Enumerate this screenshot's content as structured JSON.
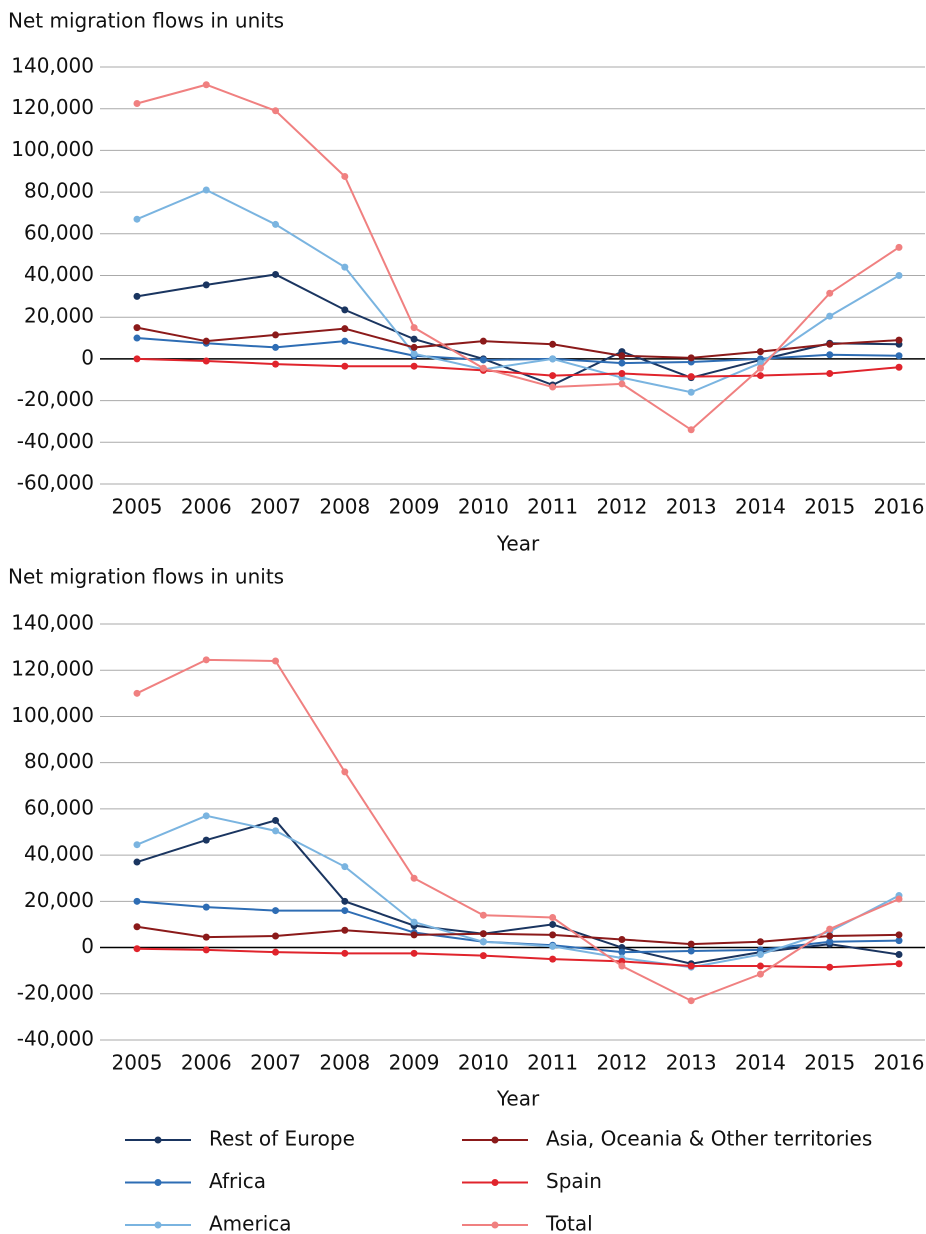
{
  "chart_data": [
    {
      "type": "line",
      "title": "Net migration flows in units",
      "x_label": "Year",
      "categories": [
        "2005",
        "2006",
        "2007",
        "2008",
        "2009",
        "2010",
        "2011",
        "2012",
        "2013",
        "2014",
        "2015",
        "2016"
      ],
      "ylim": [
        -60000,
        140000
      ],
      "yticks": [
        {
          "value": -60000,
          "label": "-60,000"
        },
        {
          "value": -40000,
          "label": "-40,000"
        },
        {
          "value": -20000,
          "label": "-20,000"
        },
        0,
        {
          "value": 20000,
          "label": "20,000"
        },
        {
          "value": 40000,
          "label": "40,000"
        },
        {
          "value": 60000,
          "label": "60,000"
        },
        {
          "value": 80000,
          "label": "80,000"
        },
        {
          "value": 100000,
          "label": "100,000"
        },
        {
          "value": 120000,
          "label": "120,000"
        },
        {
          "value": 140000,
          "label": "140,000"
        }
      ],
      "grid": true,
      "series": [
        {
          "color": "#1a3560",
          "values": [
            30000,
            35500,
            40500,
            23500,
            9500,
            0,
            -12500,
            3500,
            -9000,
            -500,
            7500,
            7000
          ]
        },
        {
          "color": "#2e6db4",
          "values": [
            10000,
            7500,
            5500,
            8500,
            1500,
            -500,
            0,
            -2000,
            -1500,
            0,
            2000,
            1500
          ]
        },
        {
          "color": "#7ab4e0",
          "values": [
            67000,
            81000,
            64500,
            44000,
            2500,
            -5000,
            0,
            -9000,
            -16000,
            -2000,
            20500,
            40000
          ]
        },
        {
          "color": "#8b1a1a",
          "values": [
            15000,
            8500,
            11500,
            14500,
            5500,
            8500,
            7000,
            1500,
            500,
            3500,
            7000,
            9000
          ]
        },
        {
          "color": "#e0242c",
          "values": [
            0,
            -1000,
            -2500,
            -3500,
            -3500,
            -5500,
            -8000,
            -7000,
            -8500,
            -8000,
            -7000,
            -4000
          ]
        },
        {
          "color": "#f08080",
          "values": [
            122500,
            131500,
            119000,
            87500,
            15000,
            -4500,
            -13500,
            -12000,
            -34000,
            -4500,
            31500,
            53500
          ]
        }
      ]
    },
    {
      "type": "line",
      "title": "Net migration flows in units",
      "x_label": "Year",
      "categories": [
        "2005",
        "2006",
        "2007",
        "2008",
        "2009",
        "2010",
        "2011",
        "2012",
        "2013",
        "2014",
        "2015",
        "2016"
      ],
      "ylim": [
        -40000,
        140000
      ],
      "yticks": [
        {
          "value": -40000,
          "label": "-40,000"
        },
        {
          "value": -20000,
          "label": "-20,000"
        },
        0,
        {
          "value": 20000,
          "label": "20,000"
        },
        {
          "value": 40000,
          "label": "40,000"
        },
        {
          "value": 60000,
          "label": "60,000"
        },
        {
          "value": 80000,
          "label": "80,000"
        },
        {
          "value": 100000,
          "label": "100,000"
        },
        {
          "value": 120000,
          "label": "120,000"
        },
        {
          "value": 140000,
          "label": "140,000"
        }
      ],
      "grid": true,
      "series": [
        {
          "name": "Rest of Europe",
          "color": "#1a3560",
          "values": [
            37000,
            46500,
            55000,
            20000,
            9500,
            6000,
            10000,
            0,
            -7000,
            -2000,
            1500,
            -3000
          ]
        },
        {
          "name": "Africa",
          "color": "#2e6db4",
          "values": [
            20000,
            17500,
            16000,
            16000,
            6500,
            2500,
            1000,
            -2000,
            -1500,
            -1000,
            2500,
            3000
          ]
        },
        {
          "name": "America",
          "color": "#7ab4e0",
          "values": [
            44500,
            57000,
            50500,
            35000,
            11000,
            2500,
            500,
            -4500,
            -8500,
            -3000,
            7000,
            22500
          ]
        },
        {
          "name": "Asia, Oceania & Other territories",
          "color": "#8b1a1a",
          "values": [
            9000,
            4500,
            5000,
            7500,
            5500,
            6000,
            5500,
            3500,
            1500,
            2500,
            5000,
            5500
          ]
        },
        {
          "name": "Spain",
          "color": "#e0242c",
          "values": [
            -500,
            -1000,
            -2000,
            -2500,
            -2500,
            -3500,
            -5000,
            -6000,
            -8000,
            -8000,
            -8500,
            -7000
          ]
        },
        {
          "name": "Total",
          "color": "#f08080",
          "values": [
            110000,
            124500,
            124000,
            76000,
            30000,
            14000,
            13000,
            -8000,
            -23000,
            -11500,
            8000,
            21000
          ]
        }
      ]
    }
  ]
}
